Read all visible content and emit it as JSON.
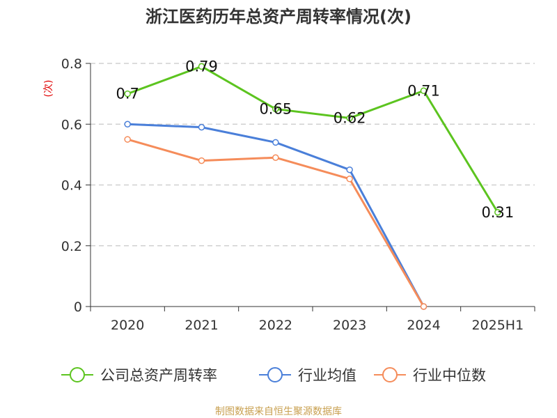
{
  "chart_data": {
    "type": "line",
    "title": "浙江医药历年总资产周转率情况(次)",
    "ylabel": "(次)",
    "xlabel": "",
    "categories": [
      "2020",
      "2021",
      "2022",
      "2023",
      "2024",
      "2025H1"
    ],
    "ylim": [
      0,
      0.8
    ],
    "yticks": [
      "0",
      "0.2",
      "0.4",
      "0.6",
      "0.8"
    ],
    "grid": true,
    "legend_position": "bottom",
    "series": [
      {
        "name": "公司总资产周转率",
        "color": "#5cc41f",
        "values": [
          0.7,
          0.79,
          0.65,
          0.62,
          0.71,
          0.31
        ],
        "labels": [
          "0.7",
          "0.79",
          "0.65",
          "0.62",
          "0.71",
          "0.31"
        ]
      },
      {
        "name": "行业均值",
        "color": "#4a7fd9",
        "values": [
          0.6,
          0.59,
          0.54,
          0.45,
          0,
          null
        ]
      },
      {
        "name": "行业中位数",
        "color": "#f58c5a",
        "values": [
          0.55,
          0.48,
          0.49,
          0.42,
          0,
          null
        ]
      }
    ]
  },
  "colors": {
    "axis": "#333333",
    "grid": "#c8c8c8",
    "ylabel": "#e00000",
    "source": "#c8a050"
  },
  "source_text": "制图数据来自恒生聚源数据库"
}
